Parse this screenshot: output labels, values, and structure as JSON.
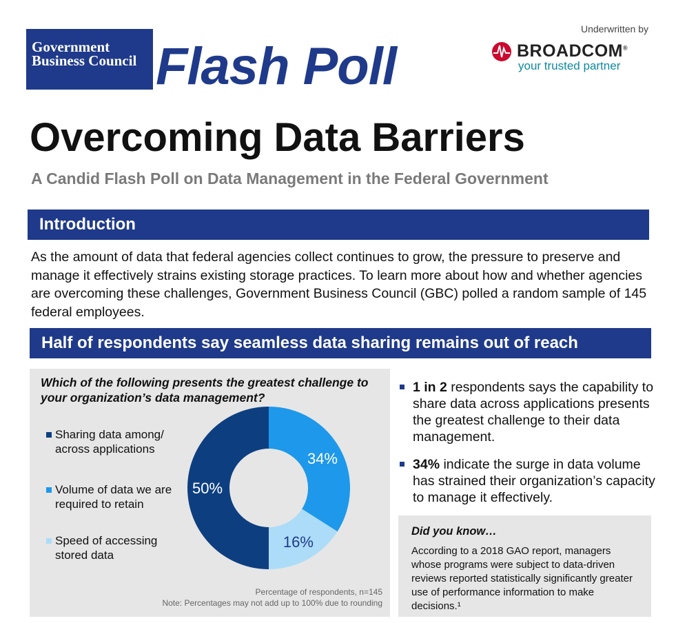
{
  "header": {
    "org_name": "Government Business Council",
    "product": "Flash Poll",
    "underwritten_label": "Underwritten by",
    "sponsor": "BROADCOM",
    "sponsor_mark": "®",
    "sponsor_tagline": "your trusted partner"
  },
  "title": "Overcoming Data Barriers",
  "subtitle": "A Candid Flash Poll on Data Management in the Federal Government",
  "intro": {
    "heading": "Introduction",
    "text": "As the amount of data that federal agencies collect continues to grow, the pressure to preserve and manage it effectively strains existing storage practices. To learn more about how and whether agencies are overcoming these challenges, Government Business Council (GBC) polled a random sample of 145 federal employees."
  },
  "finding_heading": "Half of respondents say seamless data sharing remains out of reach",
  "chart_data": {
    "type": "donut",
    "title": "Which of the following presents the greatest challenge to your organization’s data management?",
    "categories": [
      "Sharing data among/ across applications",
      "Volume of data we are required to retain",
      "Speed of accessing stored data"
    ],
    "values": [
      50,
      34,
      16
    ],
    "value_labels": [
      "50%",
      "34%",
      "16%"
    ],
    "colors": [
      "#0d3f80",
      "#1e98ea",
      "#acdcf8"
    ],
    "source_note": "Percentage of respondents, n=145",
    "rounding_note": "Note: Percentages may not add up to 100% due to rounding"
  },
  "bullets": [
    {
      "bold": "1 in 2",
      "text": " respondents says the capability to share data across applications presents the greatest challenge to their data management."
    },
    {
      "bold": "34%",
      "text": " indicate the surge in data volume has strained their organization’s capacity to manage it effectively."
    }
  ],
  "did_you_know": {
    "heading": "Did you know…",
    "text": "According to a 2018 GAO report, managers whose programs were subject to data-driven reviews reported statistically significantly greater use of performance information to make decisions.¹"
  }
}
